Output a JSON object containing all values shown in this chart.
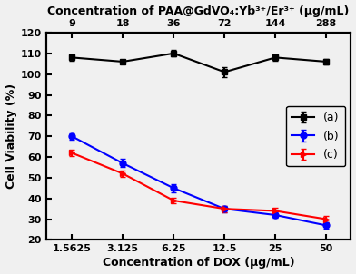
{
  "x_dox": [
    1.5625,
    3.125,
    6.25,
    12.5,
    25,
    50
  ],
  "x_paa": [
    "9",
    "18",
    "36",
    "72",
    "144",
    "288"
  ],
  "series_a": [
    108,
    106,
    110,
    101,
    108,
    106
  ],
  "series_a_err": [
    1.5,
    1.0,
    1.5,
    2.5,
    1.5,
    1.5
  ],
  "series_b": [
    70,
    57,
    45,
    35,
    32,
    27
  ],
  "series_b_err": [
    1.5,
    2.0,
    2.0,
    1.5,
    1.5,
    1.5
  ],
  "series_c": [
    62,
    52,
    39,
    35,
    34,
    30
  ],
  "series_c_err": [
    1.5,
    1.5,
    1.5,
    1.5,
    1.5,
    1.5
  ],
  "color_a": "#000000",
  "color_b": "#0000FF",
  "color_c": "#FF0000",
  "ylabel": "Cell Viability (%)",
  "xlabel_bottom": "Concentration of DOX (μg/mL)",
  "xlabel_top": "Concentration of PAA@GdVO₄:Yb³⁺/Er³⁺ (μg/mL)",
  "ylim": [
    20,
    120
  ],
  "yticks": [
    20,
    30,
    40,
    50,
    60,
    70,
    80,
    90,
    100,
    110,
    120
  ],
  "legend_labels": [
    "(a)",
    "(b)",
    "(c)"
  ],
  "figsize": [
    3.92,
    3.02
  ],
  "dpi": 100,
  "bg_color": "#f0f0f0"
}
